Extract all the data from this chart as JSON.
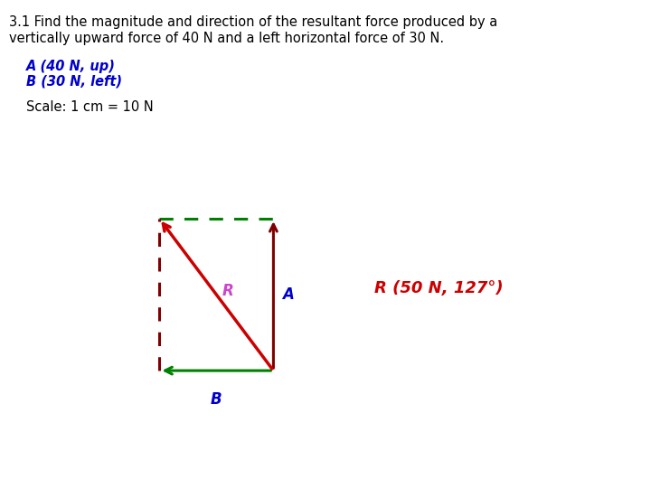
{
  "title_line1": "3.1 Find the magnitude and direction of the resultant force produced by a",
  "title_line2": "vertically upward force of 40 N and a left horizontal force of 30 N.",
  "label_A": "A (40 N, up)",
  "label_B": "B (30 N, left)",
  "scale_text": "Scale: 1 cm = 10 N",
  "result_text": "R (50 N, 127°)",
  "label_R": "R",
  "label_A_arrow": "A",
  "label_B_arrow": "B",
  "title_color": "#000000",
  "AB_label_color": "#0000cc",
  "scale_color": "#000000",
  "result_color": "#cc0000",
  "R_label_color": "#cc44cc",
  "solid_color": "#800000",
  "green_solid_color": "#008000",
  "dashed_green_color": "#008000",
  "dashed_maroon_color": "#800000",
  "diagonal_color": "#cc0000"
}
